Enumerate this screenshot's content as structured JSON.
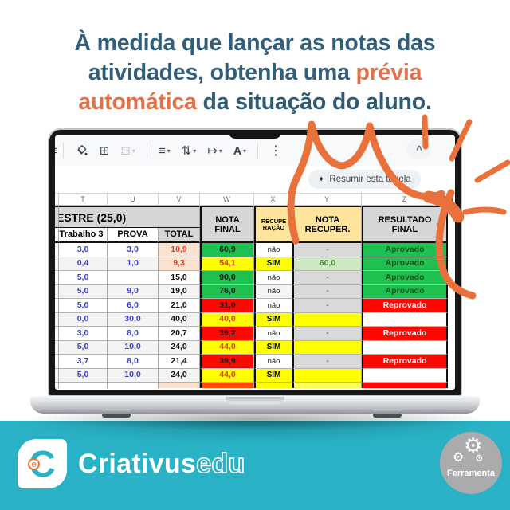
{
  "heading": {
    "line1": "À medida que lançar as notas das",
    "line2_normal": "atividades, obtenha uma ",
    "line2_highlight": "prévia",
    "line3_highlight": "automática",
    "line3_normal": " da ",
    "line3_bold": "situação do aluno",
    "line3_period": "."
  },
  "laptop": {
    "toolbar": {
      "icons": [
        {
          "name": "fill-color",
          "glyph": ""
        },
        {
          "name": "borders",
          "glyph": "⊞"
        },
        {
          "name": "merge-cells",
          "glyph": "⊟"
        },
        {
          "name": "horizontal-align",
          "glyph": "≡"
        },
        {
          "name": "vertical-align",
          "glyph": "⇅"
        },
        {
          "name": "text-wrapping",
          "glyph": "↦"
        },
        {
          "name": "text-rotation",
          "glyph": "A"
        },
        {
          "name": "more-options",
          "glyph": "⋮"
        }
      ],
      "caret": "▾",
      "clipped_icon": "≡",
      "collapse": "^"
    },
    "ai_button": {
      "icon": "✦",
      "label": "Resumir esta tabela"
    },
    "sheet": {
      "column_letters": [
        "T",
        "U",
        "V",
        "W",
        "X",
        "Y",
        "Z"
      ],
      "scroll_marker": "◂",
      "headers": {
        "group": "ESTRE (25,0)",
        "trabalho": "Trabalho 3",
        "prova": "PROVA",
        "total": "TOTAL",
        "nota_final": [
          "NOTA",
          "FINAL"
        ],
        "recuperacao": [
          "RECUPE",
          "RAÇÃO"
        ],
        "nota_recuper": [
          "NOTA",
          "RECUPER."
        ],
        "resultado": [
          "RESULTADO",
          "FINAL"
        ]
      },
      "rows": [
        {
          "t": "3,0",
          "u": "3,0",
          "v": "10,9",
          "v_style": "warn",
          "w": "60,9",
          "w_style": "green",
          "x": "não",
          "x_style": "nao",
          "y": "-",
          "y_style": "dash",
          "z": "Aprovado",
          "z_style": "approved"
        },
        {
          "t": "0,4",
          "u": "1,0",
          "v": "9,3",
          "v_style": "warn",
          "w": "54,1",
          "w_style": "yellow",
          "x": "SIM",
          "x_style": "sim",
          "y": "60,0",
          "y_style": "recov",
          "z": "Aprovado",
          "z_style": "approved"
        },
        {
          "t": "5,0",
          "u": "",
          "v": "15,0",
          "v_style": "vplain",
          "w": "90,0",
          "w_style": "green",
          "x": "não",
          "x_style": "nao",
          "y": "-",
          "y_style": "dash",
          "z": "Aprovado",
          "z_style": "approved"
        },
        {
          "t": "5,0",
          "u": "9,0",
          "v": "19,0",
          "v_style": "vplain",
          "w": "76,0",
          "w_style": "green",
          "x": "não",
          "x_style": "nao",
          "y": "-",
          "y_style": "dash",
          "z": "Aprovado",
          "z_style": "approved"
        },
        {
          "t": "5,0",
          "u": "6,0",
          "v": "21,0",
          "v_style": "vplain",
          "w": "31,0",
          "w_style": "red",
          "x": "não",
          "x_style": "nao",
          "y": "-",
          "y_style": "dash",
          "z": "Reprovado",
          "z_style": "failed"
        },
        {
          "t": "0,0",
          "u": "30,0",
          "v": "40,0",
          "v_style": "vplain",
          "w": "40,0",
          "w_style": "yellow",
          "x": "SIM",
          "x_style": "sim",
          "y": "",
          "y_style": "pending",
          "z": "",
          "z_style": "empty"
        },
        {
          "t": "3,0",
          "u": "8,0",
          "v": "20,7",
          "v_style": "vplain",
          "w": "39,2",
          "w_style": "red",
          "x": "não",
          "x_style": "nao",
          "y": "-",
          "y_style": "dash",
          "z": "Reprovado",
          "z_style": "failed"
        },
        {
          "t": "5,0",
          "u": "10,0",
          "v": "24,0",
          "v_style": "vplain",
          "w": "44,0",
          "w_style": "yellow",
          "x": "SIM",
          "x_style": "sim",
          "y": "",
          "y_style": "pending",
          "z": "",
          "z_style": "empty"
        },
        {
          "t": "3,7",
          "u": "8,0",
          "v": "21,4",
          "v_style": "vplain",
          "w": "39,9",
          "w_style": "red",
          "x": "não",
          "x_style": "nao",
          "y": "-",
          "y_style": "dash",
          "z": "Reprovado",
          "z_style": "failed"
        },
        {
          "t": "5,0",
          "u": "10,0",
          "v": "24,0",
          "v_style": "vplain",
          "w": "44,0",
          "w_style": "yellow",
          "x": "SIM",
          "x_style": "sim",
          "y": "",
          "y_style": "pending",
          "z": "",
          "z_style": "empty"
        }
      ]
    }
  },
  "footer": {
    "logo_letter": "C",
    "logo_e": "e",
    "brand_bold": "Criativus",
    "brand_outline": "edu",
    "badge_label": "Ferramenta"
  },
  "colors": {
    "heading_teal": "#315E78",
    "accent_orange": "#E0714A",
    "doodle_orange": "#E8713C",
    "footer_teal": "#29B2C5",
    "approved_green": "#1EC14F",
    "failed_red": "#FF0800",
    "recovery_yellow": "#FFFF00",
    "header_gray": "#D6D6D6",
    "recup_tan": "#FFE49E",
    "warn_peach": "#FCE3CF",
    "recov_light_green": "#CFE8C4"
  }
}
